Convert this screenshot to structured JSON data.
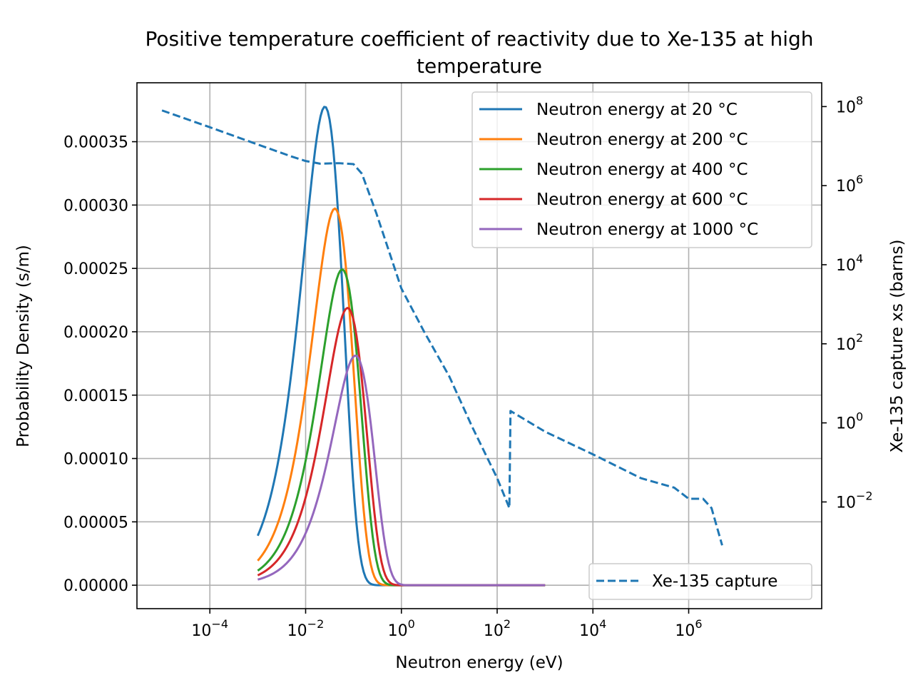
{
  "chart_data": {
    "type": "line",
    "title_line1": "Positive temperature coefficient of reactivity due to Xe-135 at high",
    "title_line2": "temperature",
    "xlabel": "Neutron energy (eV)",
    "ylabel": "Probability Density (s/m)",
    "y2label": "Xe-135 capture xs (barns)",
    "xscale": "log",
    "xlim": [
      3e-06,
      600000000.0
    ],
    "ylim": [
      -1.85e-05,
      0.0003965
    ],
    "y2scale": "log",
    "y2lim": [
      2e-05,
      400000000
    ],
    "grid": true,
    "x_ticks": [
      {
        "exp": -4,
        "base": "10",
        "power": "−4"
      },
      {
        "exp": -2,
        "base": "10",
        "power": "−2"
      },
      {
        "exp": 0,
        "base": "10",
        "power": "0"
      },
      {
        "exp": 2,
        "base": "10",
        "power": "2"
      },
      {
        "exp": 4,
        "base": "10",
        "power": "4"
      },
      {
        "exp": 6,
        "base": "10",
        "power": "6"
      }
    ],
    "y_ticks": [
      {
        "value": 0.0,
        "label": "0.00000"
      },
      {
        "value": 5e-05,
        "label": "0.00005"
      },
      {
        "value": 0.0001,
        "label": "0.00010"
      },
      {
        "value": 0.00015,
        "label": "0.00015"
      },
      {
        "value": 0.0002,
        "label": "0.00020"
      },
      {
        "value": 0.00025,
        "label": "0.00025"
      },
      {
        "value": 0.0003,
        "label": "0.00030"
      },
      {
        "value": 0.00035,
        "label": "0.00035"
      }
    ],
    "y2_ticks": [
      {
        "exp": -2,
        "base": "10",
        "power": "−2"
      },
      {
        "exp": 0,
        "base": "10",
        "power": "0"
      },
      {
        "exp": 2,
        "base": "10",
        "power": "2"
      },
      {
        "exp": 4,
        "base": "10",
        "power": "4"
      },
      {
        "exp": 6,
        "base": "10",
        "power": "6"
      },
      {
        "exp": 8,
        "base": "10",
        "power": "8"
      }
    ],
    "series": [
      {
        "name": "Neutron energy at 20 °C",
        "color": "#1f77b4",
        "temperature_c": 20,
        "x_range": [
          0.001,
          1000
        ]
      },
      {
        "name": "Neutron energy at 200 °C",
        "color": "#ff7f0e",
        "temperature_c": 200,
        "x_range": [
          0.001,
          1000
        ]
      },
      {
        "name": "Neutron energy at 400 °C",
        "color": "#2ca02c",
        "temperature_c": 400,
        "x_range": [
          0.001,
          1000
        ]
      },
      {
        "name": "Neutron energy at 600 °C",
        "color": "#d62728",
        "temperature_c": 600,
        "x_range": [
          0.001,
          1000
        ]
      },
      {
        "name": "Neutron energy at 1000 °C",
        "color": "#9467bd",
        "temperature_c": 1000,
        "x_range": [
          0.001,
          1000
        ]
      }
    ],
    "series2": {
      "name": "Xe-135 capture",
      "color": "#1f77b4",
      "style": "dashed",
      "points": [
        [
          1e-05,
          80000000
        ],
        [
          0.0001,
          30000000
        ],
        [
          0.001,
          11000000
        ],
        [
          0.005,
          5500000
        ],
        [
          0.01,
          4200000
        ],
        [
          0.02,
          3600000
        ],
        [
          0.05,
          3700000
        ],
        [
          0.1,
          3500000
        ],
        [
          0.15,
          2000000
        ],
        [
          0.3,
          200000
        ],
        [
          1,
          2500
        ],
        [
          3,
          200
        ],
        [
          10,
          15
        ],
        [
          30,
          0.8
        ],
        [
          100,
          0.04
        ],
        [
          180,
          0.007
        ],
        [
          190,
          2
        ],
        [
          1000,
          0.6
        ],
        [
          10000,
          0.16
        ],
        [
          100000,
          0.04
        ],
        [
          500000,
          0.023
        ],
        [
          1000000,
          0.012
        ],
        [
          2000000,
          0.012
        ],
        [
          3000000,
          0.007
        ],
        [
          5000000,
          0.0008
        ]
      ]
    },
    "legend_placement": "upper right",
    "legend2_placement": "lower right"
  }
}
